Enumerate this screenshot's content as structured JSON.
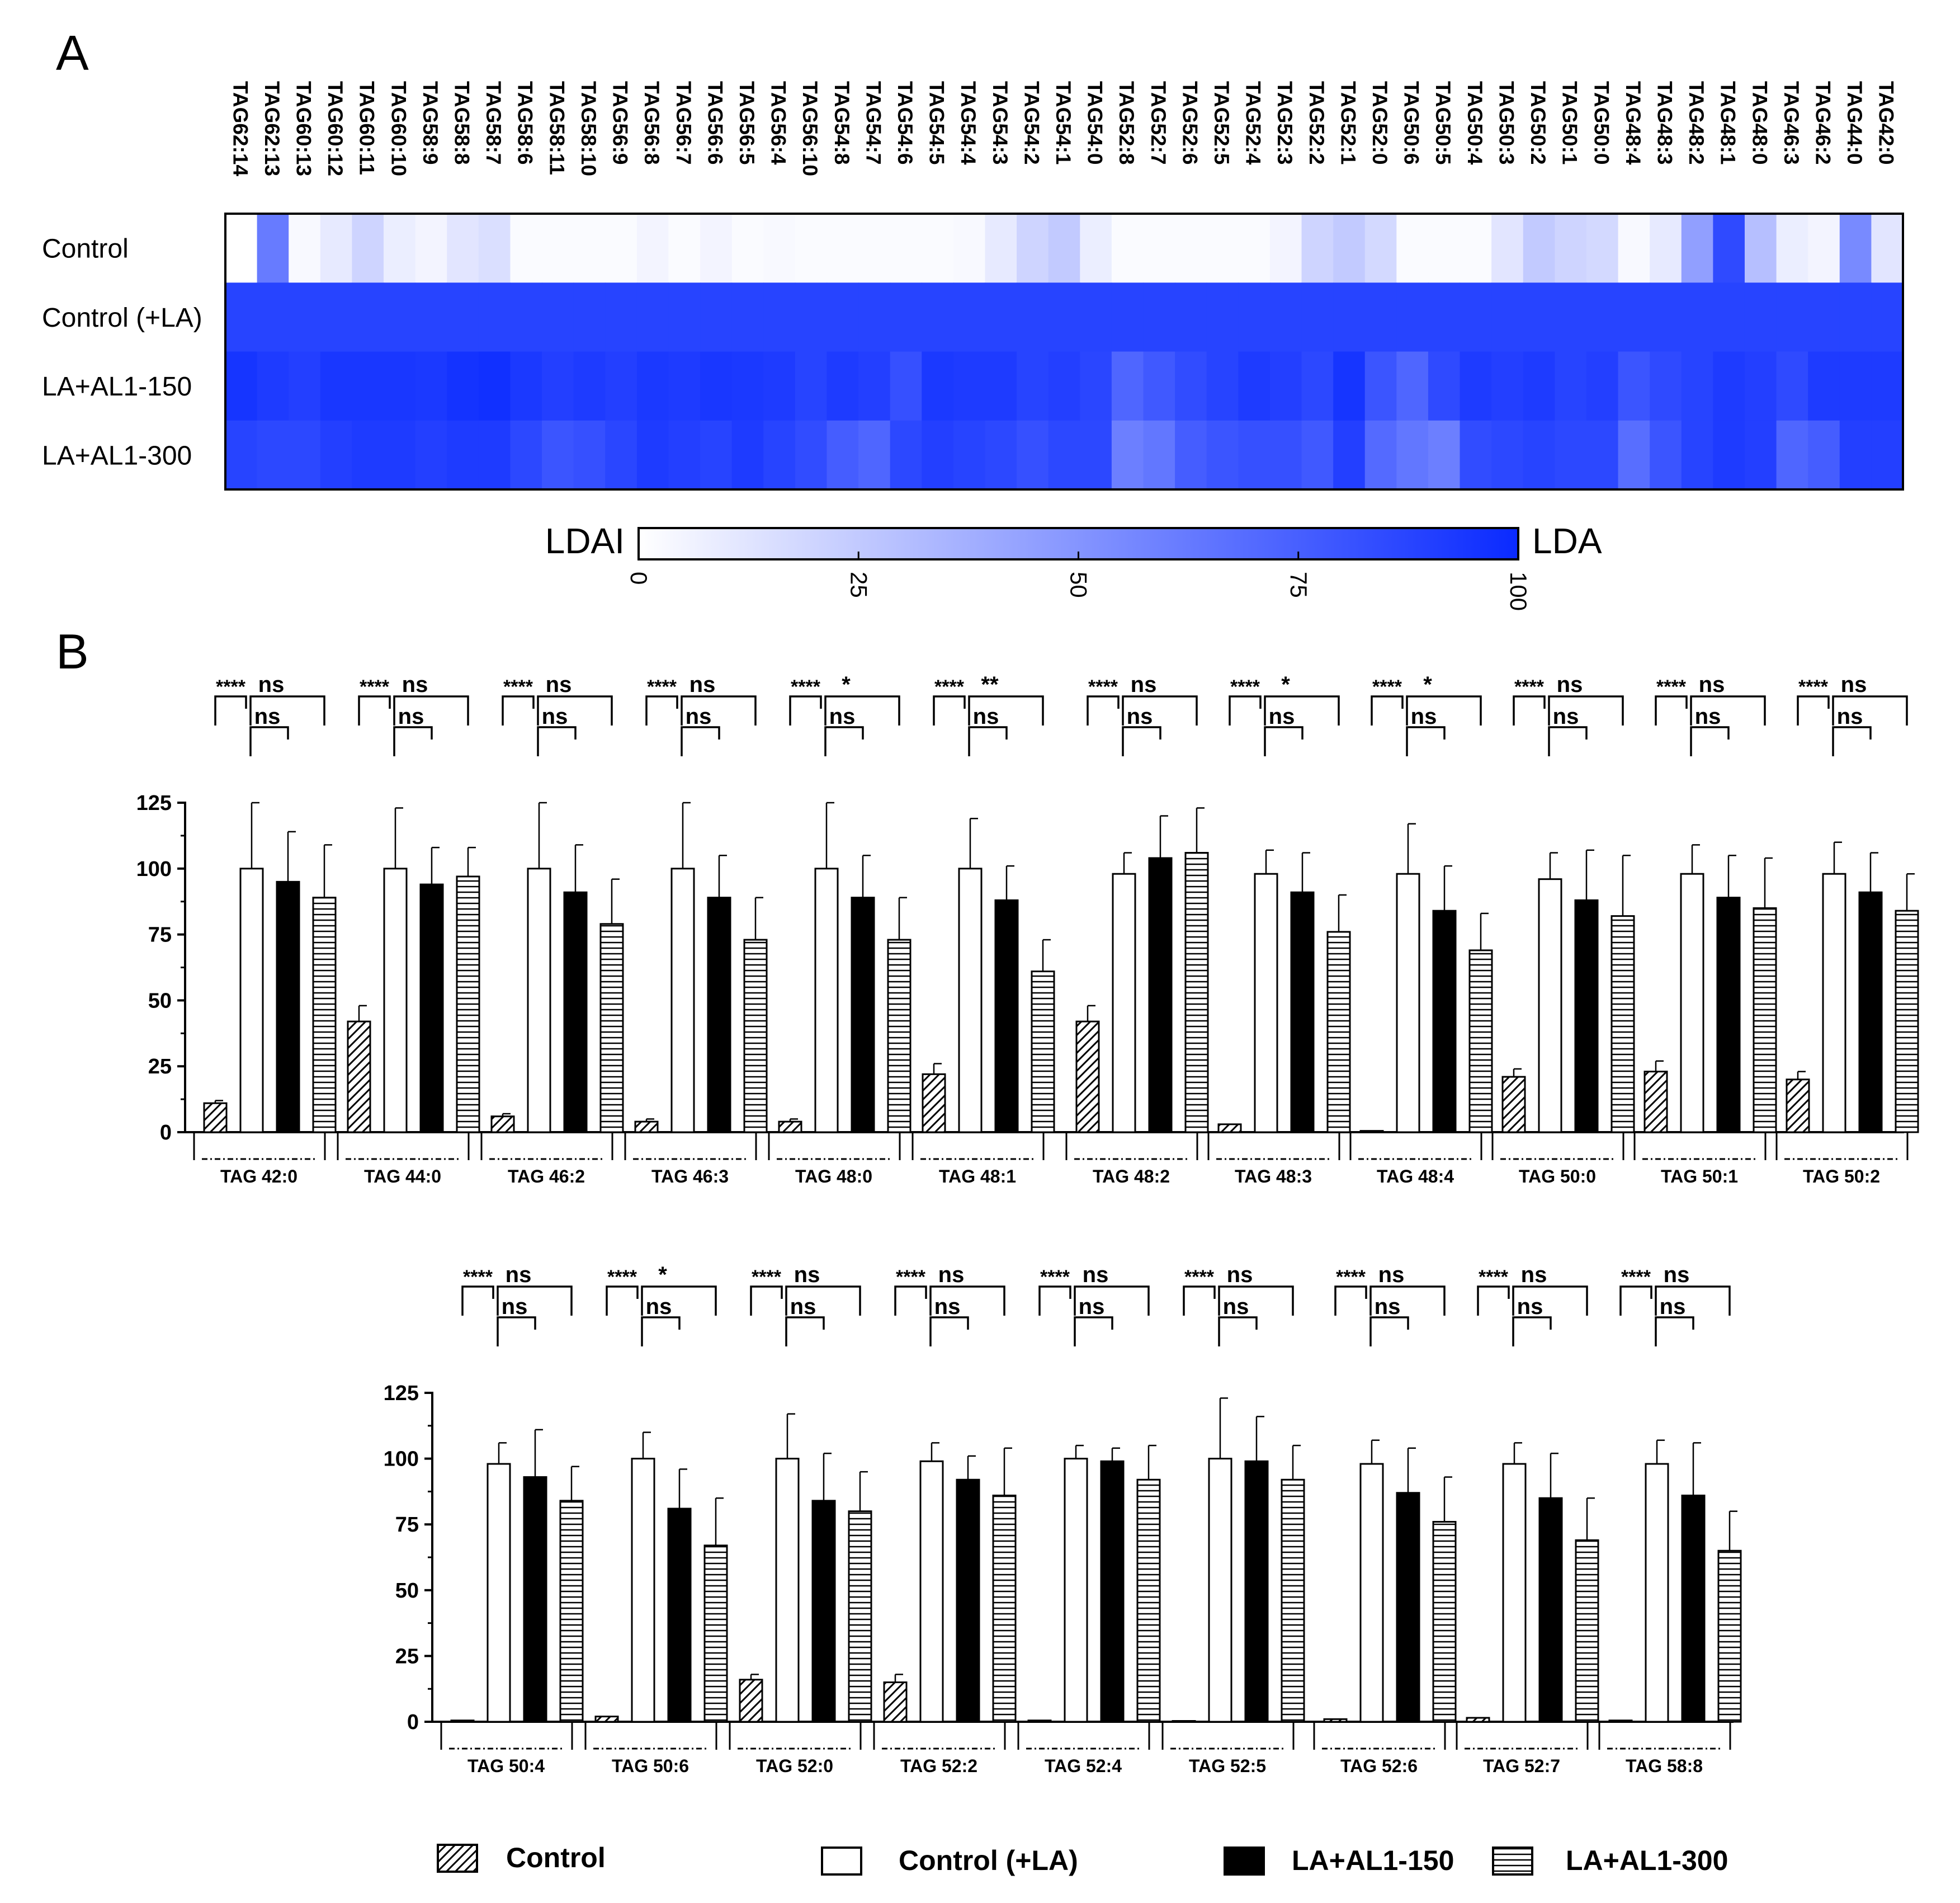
{
  "figure": {
    "panel_a_label": "A",
    "panel_b_label": "B"
  },
  "chart_data": [
    {
      "type": "heatmap",
      "title": "",
      "columns": [
        "TAG62:14",
        "TAG62:13",
        "TAG60:13",
        "TAG60:12",
        "TAG60:11",
        "TAG60:10",
        "TAG58:9",
        "TAG58:8",
        "TAG58:7",
        "TAG58:6",
        "TAG58:11",
        "TAG58:10",
        "TAG56:9",
        "TAG56:8",
        "TAG56:7",
        "TAG56:6",
        "TAG56:5",
        "TAG56:4",
        "TAG56:10",
        "TAG54:8",
        "TAG54:7",
        "TAG54:6",
        "TAG54:5",
        "TAG54:4",
        "TAG54:3",
        "TAG54:2",
        "TAG54:1",
        "TAG54:0",
        "TAG52:8",
        "TAG52:7",
        "TAG52:6",
        "TAG52:5",
        "TAG52:4",
        "TAG52:3",
        "TAG52:2",
        "TAG52:1",
        "TAG52:0",
        "TAG50:6",
        "TAG50:5",
        "TAG50:4",
        "TAG50:3",
        "TAG50:2",
        "TAG50:1",
        "TAG50:0",
        "TAG48:4",
        "TAG48:3",
        "TAG48:2",
        "TAG48:1",
        "TAG48:0",
        "TAG46:3",
        "TAG46:2",
        "TAG44:0",
        "TAG42:0"
      ],
      "rows": [
        {
          "name": "Control",
          "values": [
            0,
            62,
            3,
            10,
            20,
            8,
            5,
            12,
            15,
            2,
            2,
            2,
            2,
            5,
            2,
            5,
            2,
            3,
            2,
            2,
            2,
            2,
            2,
            3,
            10,
            20,
            25,
            8,
            2,
            2,
            2,
            2,
            2,
            5,
            20,
            25,
            18,
            2,
            2,
            2,
            12,
            25,
            20,
            18,
            3,
            10,
            45,
            85,
            30,
            8,
            5,
            55,
            12
          ]
        },
        {
          "name": "Control (+LA)",
          "values": [
            88,
            88,
            88,
            88,
            88,
            88,
            88,
            88,
            88,
            88,
            88,
            88,
            88,
            88,
            88,
            88,
            88,
            88,
            88,
            88,
            88,
            88,
            88,
            88,
            88,
            88,
            88,
            88,
            88,
            88,
            88,
            88,
            88,
            88,
            88,
            88,
            88,
            88,
            88,
            88,
            88,
            88,
            88,
            88,
            88,
            88,
            88,
            88,
            88,
            88,
            88,
            88,
            88
          ]
        },
        {
          "name": "LA+AL1-150",
          "values": [
            95,
            92,
            90,
            94,
            94,
            94,
            93,
            96,
            97,
            93,
            90,
            92,
            90,
            93,
            92,
            94,
            93,
            92,
            88,
            92,
            90,
            82,
            93,
            92,
            92,
            88,
            90,
            87,
            72,
            78,
            84,
            88,
            92,
            90,
            86,
            95,
            80,
            72,
            85,
            92,
            90,
            92,
            88,
            90,
            80,
            85,
            88,
            92,
            90,
            85,
            92,
            92,
            92
          ]
        },
        {
          "name": "LA+AL1-300",
          "values": [
            88,
            86,
            86,
            90,
            92,
            92,
            90,
            92,
            92,
            86,
            80,
            82,
            87,
            92,
            90,
            88,
            92,
            88,
            84,
            76,
            72,
            86,
            90,
            88,
            86,
            82,
            86,
            86,
            60,
            64,
            76,
            80,
            82,
            82,
            78,
            90,
            70,
            64,
            60,
            84,
            86,
            88,
            86,
            86,
            68,
            80,
            88,
            92,
            90,
            72,
            76,
            90,
            90
          ]
        }
      ],
      "colorbar": {
        "min": 0,
        "max": 100,
        "ticks": [
          "0",
          "25",
          "50",
          "75",
          "100"
        ],
        "low_label": "LDAI",
        "high_label": "LDA",
        "low_color": "#ffffff",
        "high_color": "#0a2aff"
      }
    },
    {
      "type": "bar",
      "title": "",
      "y_axis": {
        "min": 0,
        "max": 125,
        "ticks": [
          "0",
          "25",
          "50",
          "75",
          "100",
          "125"
        ]
      },
      "series_names": [
        "Control",
        "Control (+LA)",
        "LA+AL1-150",
        "LA+AL1-300"
      ],
      "groups": [
        {
          "label": "TAG 42:0",
          "values": [
            11,
            100,
            95,
            89
          ],
          "errors": [
            1,
            25,
            19,
            20
          ],
          "sig": [
            "****",
            "ns",
            "ns"
          ]
        },
        {
          "label": "TAG 44:0",
          "values": [
            42,
            100,
            94,
            97
          ],
          "errors": [
            6,
            23,
            14,
            11
          ],
          "sig": [
            "****",
            "ns",
            "ns"
          ]
        },
        {
          "label": "TAG 46:2",
          "values": [
            6,
            100,
            91,
            79
          ],
          "errors": [
            1,
            25,
            18,
            17
          ],
          "sig": [
            "****",
            "ns",
            "ns"
          ]
        },
        {
          "label": "TAG 46:3",
          "values": [
            4,
            100,
            89,
            73
          ],
          "errors": [
            1,
            25,
            16,
            16
          ],
          "sig": [
            "****",
            "ns",
            "ns"
          ]
        },
        {
          "label": "TAG 48:0",
          "values": [
            4,
            100,
            89,
            73
          ],
          "errors": [
            1,
            25,
            16,
            16
          ],
          "sig": [
            "****",
            "*",
            "ns"
          ]
        },
        {
          "label": "TAG 48:1",
          "values": [
            22,
            100,
            88,
            61
          ],
          "errors": [
            4,
            19,
            13,
            12
          ],
          "sig": [
            "****",
            "**",
            "ns"
          ]
        },
        {
          "label": "TAG 48:2",
          "values": [
            42,
            98,
            104,
            106
          ],
          "errors": [
            6,
            8,
            16,
            17
          ],
          "sig": [
            "****",
            "ns",
            "ns"
          ]
        },
        {
          "label": "TAG 48:3",
          "values": [
            3,
            98,
            91,
            76
          ],
          "errors": [
            0.5,
            9,
            15,
            14
          ],
          "sig": [
            "****",
            "*",
            "ns"
          ]
        },
        {
          "label": "TAG 48:4",
          "values": [
            0.5,
            98,
            84,
            69
          ],
          "errors": [
            0.2,
            19,
            17,
            14
          ],
          "sig": [
            "****",
            "*",
            "ns"
          ]
        },
        {
          "label": "TAG 50:0",
          "values": [
            21,
            96,
            88,
            82
          ],
          "errors": [
            3,
            10,
            19,
            23
          ],
          "sig": [
            "****",
            "ns",
            "ns"
          ]
        },
        {
          "label": "TAG 50:1",
          "values": [
            23,
            98,
            89,
            85
          ],
          "errors": [
            4,
            11,
            16,
            19
          ],
          "sig": [
            "****",
            "ns",
            "ns"
          ]
        },
        {
          "label": "TAG 50:2",
          "values": [
            20,
            98,
            91,
            84
          ],
          "errors": [
            3,
            12,
            15,
            14
          ],
          "sig": [
            "****",
            "ns",
            "ns"
          ]
        },
        {
          "label": "TAG 50:4",
          "values": [
            0.5,
            98,
            93,
            84
          ],
          "errors": [
            0.2,
            8,
            18,
            13
          ],
          "sig": [
            "****",
            "ns",
            "ns"
          ]
        },
        {
          "label": "TAG 50:6",
          "values": [
            2,
            100,
            81,
            67
          ],
          "errors": [
            0.5,
            10,
            15,
            18
          ],
          "sig": [
            "****",
            "*",
            "ns"
          ]
        },
        {
          "label": "TAG 52:0",
          "values": [
            16,
            100,
            84,
            80
          ],
          "errors": [
            2,
            17,
            18,
            15
          ],
          "sig": [
            "****",
            "ns",
            "ns"
          ]
        },
        {
          "label": "TAG 52:2",
          "values": [
            15,
            99,
            92,
            86
          ],
          "errors": [
            3,
            7,
            9,
            18
          ],
          "sig": [
            "****",
            "ns",
            "ns"
          ]
        },
        {
          "label": "TAG 52:4",
          "values": [
            0.5,
            100,
            99,
            92
          ],
          "errors": [
            0.2,
            5,
            5,
            13
          ],
          "sig": [
            "****",
            "ns",
            "ns"
          ]
        },
        {
          "label": "TAG 52:5",
          "values": [
            0.3,
            100,
            99,
            92
          ],
          "errors": [
            0.2,
            23,
            17,
            13
          ],
          "sig": [
            "****",
            "ns",
            "ns"
          ]
        },
        {
          "label": "TAG 52:6",
          "values": [
            1,
            98,
            87,
            76
          ],
          "errors": [
            0.3,
            9,
            17,
            17
          ],
          "sig": [
            "****",
            "ns",
            "ns"
          ]
        },
        {
          "label": "TAG 52:7",
          "values": [
            1.5,
            98,
            85,
            69
          ],
          "errors": [
            0.5,
            8,
            17,
            16
          ],
          "sig": [
            "****",
            "ns",
            "ns"
          ]
        },
        {
          "label": "TAG 58:8",
          "values": [
            0.5,
            98,
            86,
            65
          ],
          "errors": [
            0.2,
            9,
            20,
            15
          ],
          "sig": [
            "****",
            "ns",
            "ns"
          ]
        }
      ],
      "legend": [
        "Control",
        "Control  (+LA)",
        "LA+AL1-150",
        "LA+AL1-300"
      ]
    }
  ]
}
